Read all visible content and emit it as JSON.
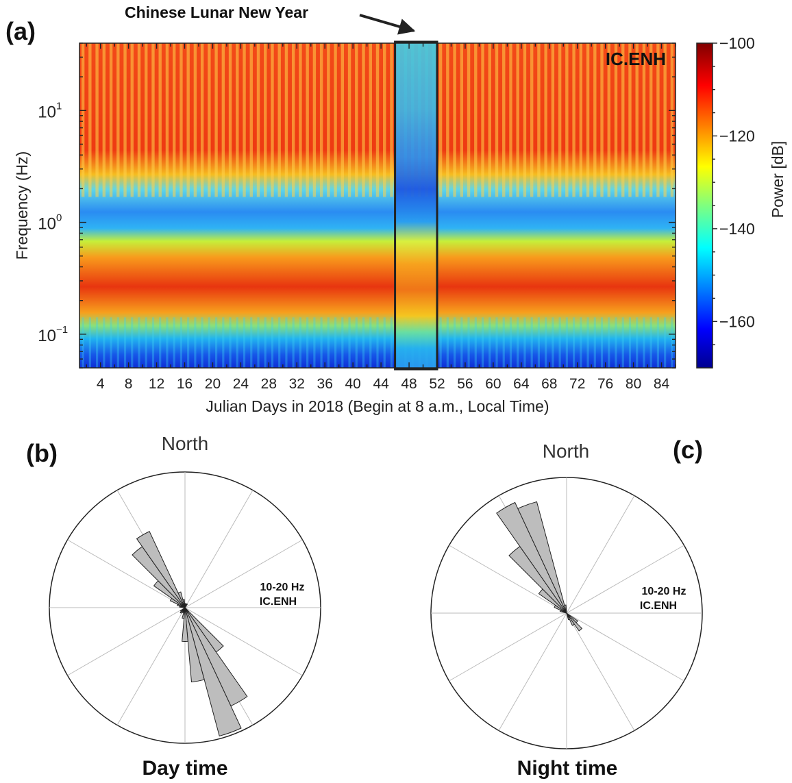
{
  "panel_a": {
    "label": "(a)",
    "station": "IC.ENH",
    "annotation": "Chinese Lunar New Year",
    "annotation_range": [
      46,
      52
    ],
    "xlabel": "Julian Days in 2018 (Begin at 8 a.m., Local Time)",
    "ylabel": "Frequency (Hz)",
    "colorbar_label": "Power [dB]"
  },
  "panel_b": {
    "label": "(b)",
    "north_label": "North",
    "caption": "Day time",
    "band_label": "10-20 Hz",
    "station_label": "IC.ENH"
  },
  "panel_c": {
    "label": "(c)",
    "north_label": "North",
    "caption": "Night time",
    "band_label": "10-20 Hz",
    "station_label": "IC.ENH"
  },
  "chart_data": [
    {
      "type": "heatmap",
      "title": "",
      "xlabel": "Julian Days in 2018 (Begin at 8 a.m., Local Time)",
      "ylabel": "Frequency (Hz)",
      "xlim": [
        1,
        86
      ],
      "ylim": [
        0.05,
        40
      ],
      "yscale": "log",
      "x_ticks": [
        4,
        8,
        12,
        16,
        20,
        24,
        28,
        32,
        36,
        40,
        44,
        48,
        52,
        56,
        60,
        64,
        68,
        72,
        76,
        80,
        84
      ],
      "y_ticks": [
        {
          "value": 0.1,
          "base": "10",
          "exp": "−1"
        },
        {
          "value": 1,
          "base": "10",
          "exp": "0"
        },
        {
          "value": 10,
          "base": "10",
          "exp": "1"
        }
      ],
      "colorbar": {
        "label": "Power [dB]",
        "range": [
          -170,
          -100
        ],
        "ticks": [
          "−100",
          "−120",
          "−140",
          "−160"
        ],
        "tick_values": [
          -100,
          -120,
          -140,
          -160
        ]
      },
      "band_power_db": [
        {
          "freq_low": 2.0,
          "freq_high": 40,
          "weekday": -126,
          "holiday": -140
        },
        {
          "freq_low": 0.55,
          "freq_high": 2.0,
          "weekday": -150,
          "holiday": -155
        },
        {
          "freq_low": 0.13,
          "freq_high": 0.55,
          "weekday": -124,
          "holiday": -130
        },
        {
          "freq_low": 0.05,
          "freq_high": 0.13,
          "weekday": -158,
          "holiday": -152
        }
      ],
      "holiday_interval_days": [
        46,
        52
      ],
      "grid": false
    },
    {
      "type": "rose",
      "panel": "b",
      "title": "Day time",
      "sector_width_deg": 10,
      "azimuth_deg": [
        140,
        150,
        160,
        170,
        180,
        190,
        200,
        210,
        220,
        230,
        280,
        290,
        300,
        310,
        320,
        330,
        340,
        350,
        0,
        10,
        30
      ],
      "relative_power": [
        0.4,
        0.8,
        0.98,
        0.55,
        0.25,
        0.08,
        0.04,
        0.04,
        0.05,
        0.04,
        0.04,
        0.06,
        0.12,
        0.28,
        0.55,
        0.62,
        0.12,
        0.06,
        0.03,
        0.03,
        0.03
      ]
    },
    {
      "type": "rose",
      "panel": "c",
      "title": "Night time",
      "sector_width_deg": 10,
      "azimuth_deg": [
        130,
        140,
        150,
        160,
        290,
        300,
        310,
        320,
        330,
        340,
        350
      ],
      "relative_power": [
        0.1,
        0.16,
        0.1,
        0.05,
        0.05,
        0.1,
        0.25,
        0.6,
        0.9,
        0.85,
        0.06
      ]
    }
  ]
}
